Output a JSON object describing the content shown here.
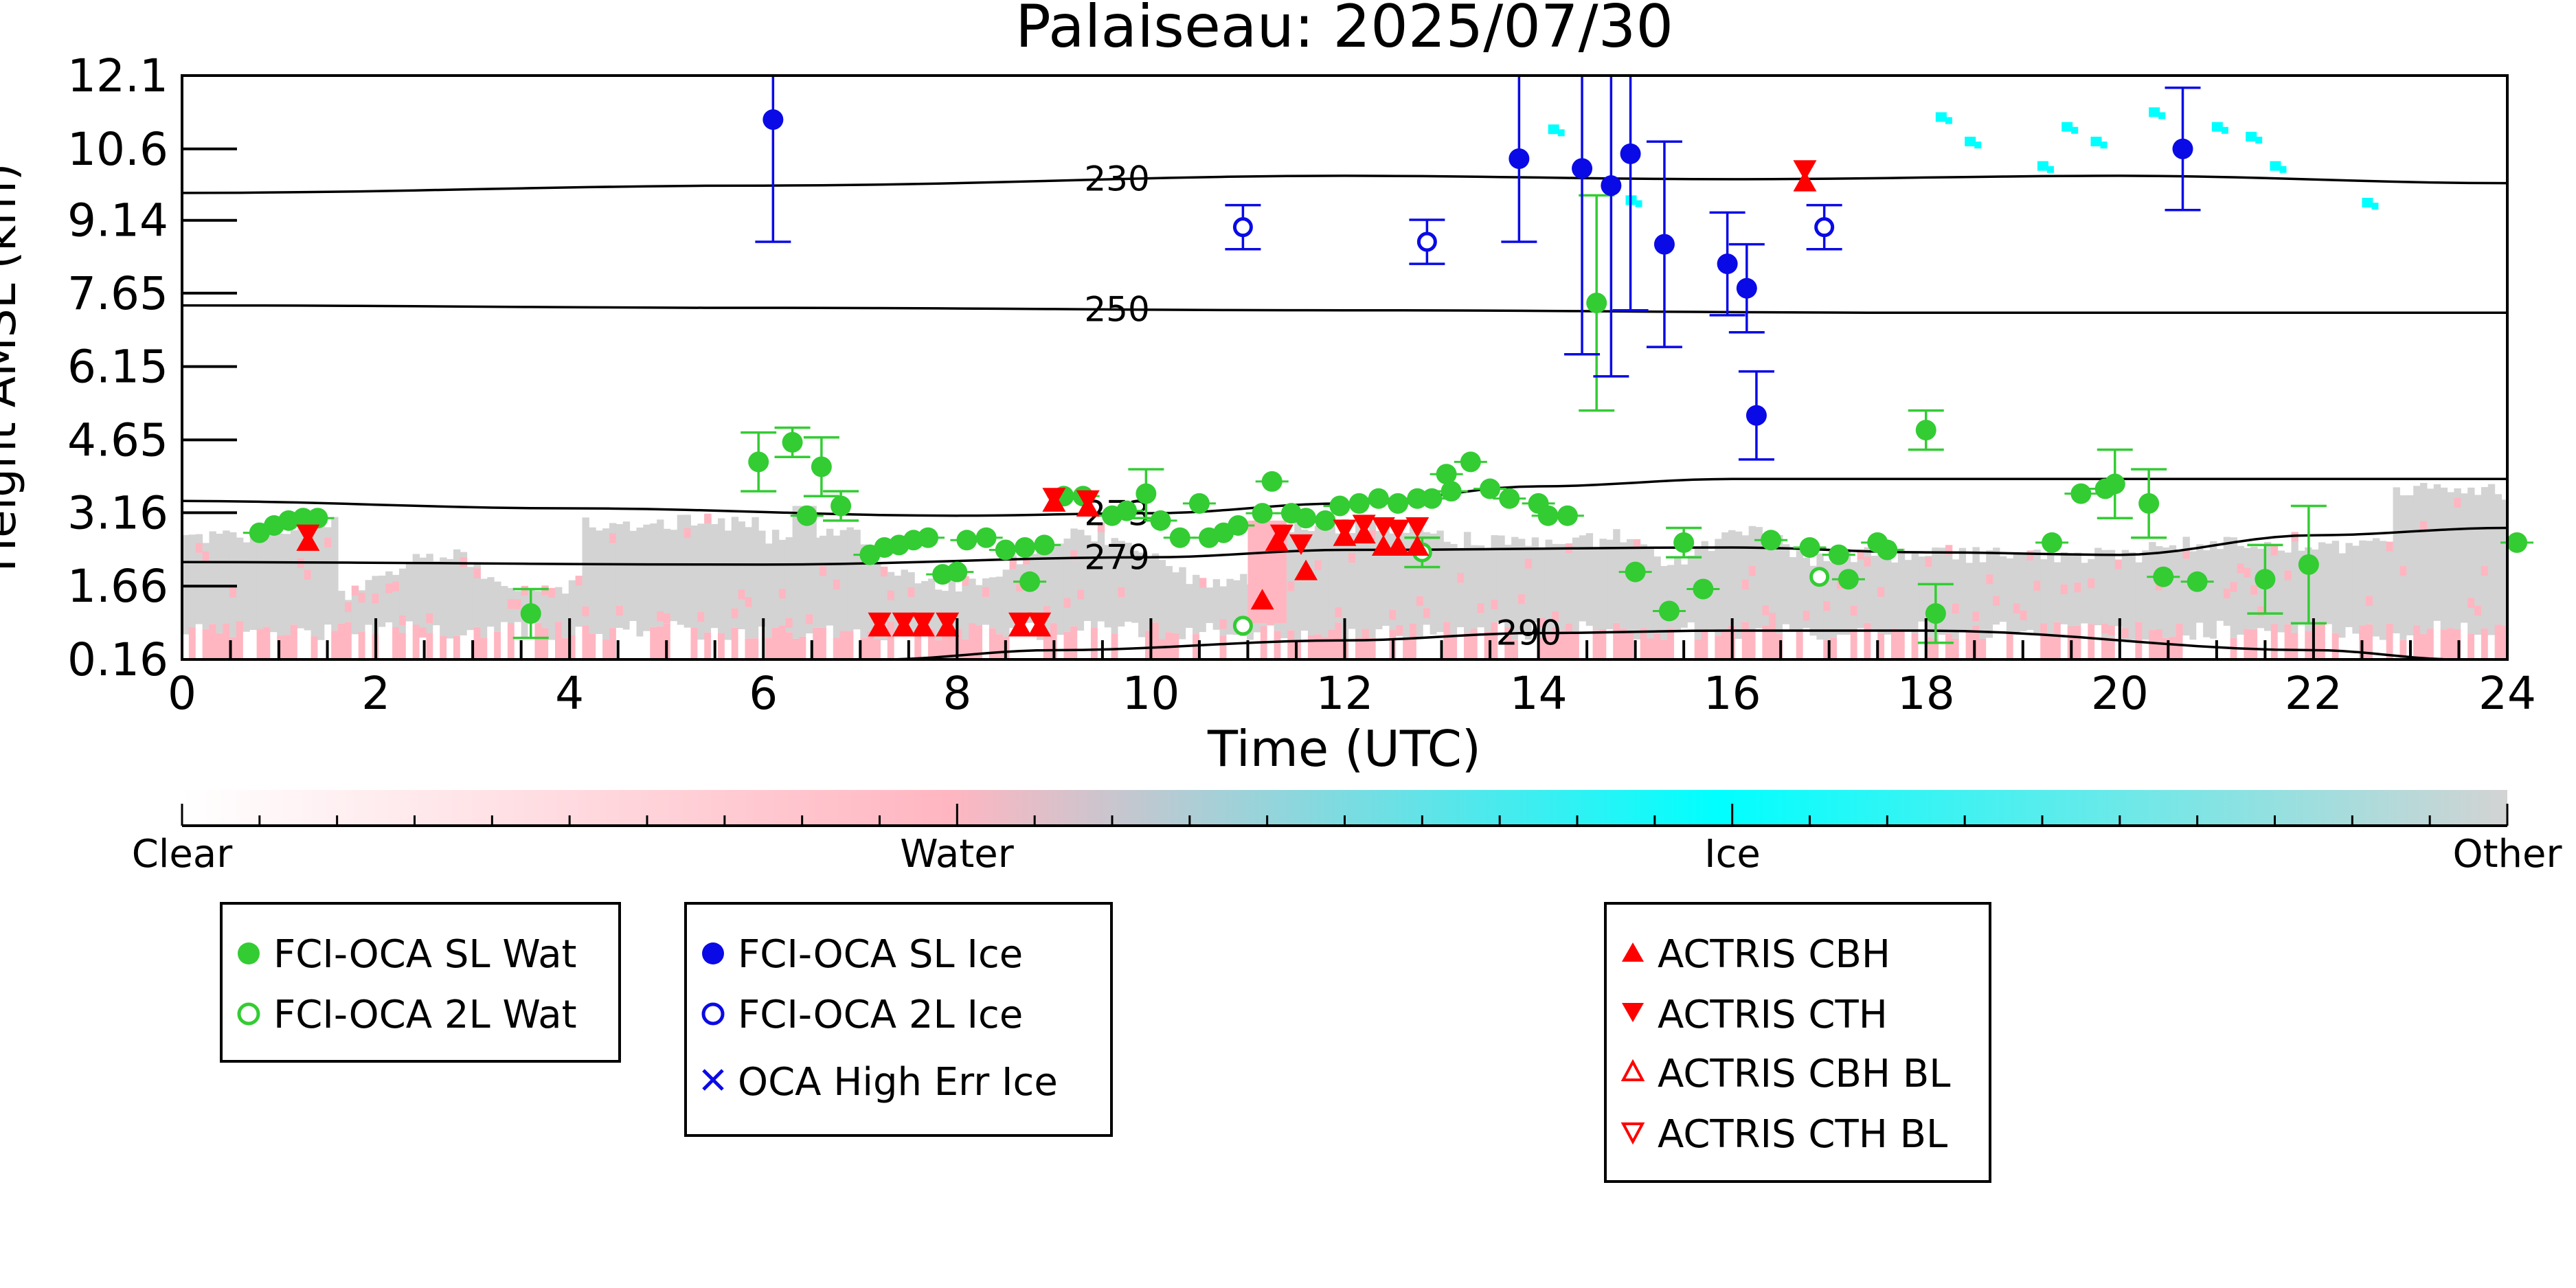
{
  "chart_data": {
    "type": "scatter",
    "title": "Palaiseau: 2025/07/30",
    "xlabel": "Time (UTC)",
    "ylabel": "Height AMSL (km)",
    "xlim": [
      0,
      24
    ],
    "ylim": [
      0.16,
      12.1
    ],
    "x_ticks": [
      "0",
      "2",
      "4",
      "6",
      "8",
      "10",
      "12",
      "14",
      "16",
      "18",
      "20",
      "22",
      "24"
    ],
    "y_ticks": [
      "0.16",
      "1.66",
      "3.16",
      "4.65",
      "6.15",
      "7.65",
      "9.14",
      "10.6",
      "12.1"
    ],
    "grid": false,
    "colorbar": {
      "labels": [
        "Clear",
        "Water",
        "Ice",
        "Other"
      ],
      "colors": [
        "#ffffff",
        "#ffb6c1",
        "#00ffff",
        "#d3d3d3"
      ]
    },
    "background_description": "cloud-phase curtain (grey = other, pink = water, cyan = ice)",
    "contours": [
      {
        "label": "230",
        "points": [
          [
            0,
            9.7
          ],
          [
            6,
            9.85
          ],
          [
            12,
            10.05
          ],
          [
            16,
            9.98
          ],
          [
            20,
            10.05
          ],
          [
            24,
            9.9
          ]
        ]
      },
      {
        "label": "250",
        "points": [
          [
            0,
            7.4
          ],
          [
            6,
            7.35
          ],
          [
            12,
            7.3
          ],
          [
            18,
            7.25
          ],
          [
            24,
            7.25
          ]
        ]
      },
      {
        "label": "273",
        "points": [
          [
            0,
            3.4
          ],
          [
            4,
            3.25
          ],
          [
            8,
            3.1
          ],
          [
            10,
            3.15
          ],
          [
            12,
            3.35
          ],
          [
            14,
            3.7
          ],
          [
            16,
            3.85
          ],
          [
            18,
            3.85
          ],
          [
            24,
            3.85
          ]
        ]
      },
      {
        "label": "279",
        "points": [
          [
            0,
            2.15
          ],
          [
            6,
            2.1
          ],
          [
            10,
            2.25
          ],
          [
            12,
            2.4
          ],
          [
            16,
            2.45
          ],
          [
            18,
            2.35
          ],
          [
            20,
            2.3
          ],
          [
            22,
            2.7
          ],
          [
            24,
            2.85
          ]
        ]
      },
      {
        "label": "290",
        "points": [
          [
            7.2,
            0.16
          ],
          [
            9,
            0.35
          ],
          [
            12,
            0.55
          ],
          [
            14,
            0.7
          ],
          [
            16,
            0.75
          ],
          [
            18,
            0.75
          ],
          [
            22,
            0.35
          ],
          [
            23.5,
            0.16
          ]
        ]
      }
    ],
    "series": [
      {
        "name": "FCI-OCA SL Wat",
        "color": "#33cc33",
        "marker": "filled-circle",
        "points": [
          {
            "x": 0.8,
            "y": 2.75
          },
          {
            "x": 0.95,
            "y": 2.9
          },
          {
            "x": 1.1,
            "y": 3.0
          },
          {
            "x": 1.25,
            "y": 3.05
          },
          {
            "x": 1.4,
            "y": 3.05
          },
          {
            "x": 3.6,
            "y": 1.1,
            "err": [
              0.5,
              0.5
            ]
          },
          {
            "x": 5.95,
            "y": 4.2,
            "err": [
              0.6,
              0.6
            ]
          },
          {
            "x": 6.3,
            "y": 4.6,
            "err": [
              0.3,
              0.3
            ]
          },
          {
            "x": 6.45,
            "y": 3.1
          },
          {
            "x": 6.6,
            "y": 4.1,
            "err": [
              0.6,
              0.6
            ]
          },
          {
            "x": 6.8,
            "y": 3.3,
            "err": [
              0.3,
              0.3
            ]
          },
          {
            "x": 7.1,
            "y": 2.3
          },
          {
            "x": 7.25,
            "y": 2.45
          },
          {
            "x": 7.4,
            "y": 2.5
          },
          {
            "x": 7.55,
            "y": 2.6
          },
          {
            "x": 7.7,
            "y": 2.65
          },
          {
            "x": 7.85,
            "y": 1.9
          },
          {
            "x": 8.0,
            "y": 1.95
          },
          {
            "x": 8.1,
            "y": 2.6
          },
          {
            "x": 8.3,
            "y": 2.65
          },
          {
            "x": 8.5,
            "y": 2.4
          },
          {
            "x": 8.7,
            "y": 2.45
          },
          {
            "x": 8.75,
            "y": 1.75
          },
          {
            "x": 8.9,
            "y": 2.5
          },
          {
            "x": 9.1,
            "y": 3.5
          },
          {
            "x": 9.3,
            "y": 3.5
          },
          {
            "x": 9.6,
            "y": 3.1
          },
          {
            "x": 9.75,
            "y": 3.2
          },
          {
            "x": 9.95,
            "y": 3.55,
            "err": [
              0.5,
              0.5
            ]
          },
          {
            "x": 10.1,
            "y": 3.0
          },
          {
            "x": 10.3,
            "y": 2.65
          },
          {
            "x": 10.5,
            "y": 3.35
          },
          {
            "x": 10.6,
            "y": 2.65
          },
          {
            "x": 10.75,
            "y": 2.75
          },
          {
            "x": 10.9,
            "y": 2.9
          },
          {
            "x": 11.15,
            "y": 3.15
          },
          {
            "x": 11.25,
            "y": 3.8
          },
          {
            "x": 11.45,
            "y": 3.15
          },
          {
            "x": 11.6,
            "y": 3.05
          },
          {
            "x": 11.8,
            "y": 3.0
          },
          {
            "x": 11.95,
            "y": 3.3
          },
          {
            "x": 12.15,
            "y": 3.35
          },
          {
            "x": 12.35,
            "y": 3.45
          },
          {
            "x": 12.55,
            "y": 3.35
          },
          {
            "x": 12.75,
            "y": 3.45
          },
          {
            "x": 12.9,
            "y": 3.45
          },
          {
            "x": 13.05,
            "y": 3.95
          },
          {
            "x": 13.1,
            "y": 3.6
          },
          {
            "x": 13.3,
            "y": 4.2
          },
          {
            "x": 13.5,
            "y": 3.65
          },
          {
            "x": 13.7,
            "y": 3.45
          },
          {
            "x": 14.0,
            "y": 3.35
          },
          {
            "x": 14.1,
            "y": 3.1
          },
          {
            "x": 14.3,
            "y": 3.1
          },
          {
            "x": 14.6,
            "y": 7.45,
            "err": [
              2.2,
              2.2
            ]
          },
          {
            "x": 15.0,
            "y": 1.95
          },
          {
            "x": 15.35,
            "y": 1.15
          },
          {
            "x": 15.5,
            "y": 2.55,
            "err": [
              0.3,
              0.3
            ]
          },
          {
            "x": 15.7,
            "y": 1.6
          },
          {
            "x": 16.4,
            "y": 2.6
          },
          {
            "x": 16.8,
            "y": 2.45
          },
          {
            "x": 17.1,
            "y": 2.3
          },
          {
            "x": 17.2,
            "y": 1.8
          },
          {
            "x": 17.5,
            "y": 2.55
          },
          {
            "x": 17.6,
            "y": 2.4
          },
          {
            "x": 18.0,
            "y": 4.85,
            "err": [
              0.4,
              0.4
            ]
          },
          {
            "x": 18.1,
            "y": 1.1,
            "err": [
              0.6,
              0.6
            ]
          },
          {
            "x": 19.3,
            "y": 2.55
          },
          {
            "x": 19.6,
            "y": 3.55
          },
          {
            "x": 19.85,
            "y": 3.65
          },
          {
            "x": 19.95,
            "y": 3.75,
            "err": [
              0.7,
              0.7
            ]
          },
          {
            "x": 20.3,
            "y": 3.35,
            "err": [
              0.7,
              0.7
            ]
          },
          {
            "x": 20.45,
            "y": 1.85
          },
          {
            "x": 20.8,
            "y": 1.75
          },
          {
            "x": 21.5,
            "y": 1.8,
            "err": [
              0.7,
              0.7
            ]
          },
          {
            "x": 21.95,
            "y": 2.1,
            "err": [
              1.2,
              1.2
            ]
          },
          {
            "x": 24.1,
            "y": 2.55
          }
        ]
      },
      {
        "name": "FCI-OCA 2L Wat",
        "color": "#33cc33",
        "marker": "open-circle",
        "points": [
          {
            "x": 10.95,
            "y": 0.85
          },
          {
            "x": 12.8,
            "y": 2.35,
            "err": [
              0.3,
              0.3
            ]
          },
          {
            "x": 16.9,
            "y": 1.85
          }
        ]
      },
      {
        "name": "FCI-OCA SL Ice",
        "color": "#0a0ae6",
        "marker": "filled-circle",
        "points": [
          {
            "x": 6.1,
            "y": 11.2,
            "err": [
              2.5,
              2.5
            ]
          },
          {
            "x": 13.8,
            "y": 10.4,
            "err": [
              1.7,
              1.7
            ]
          },
          {
            "x": 14.45,
            "y": 10.2,
            "err": [
              3.8,
              3.8
            ]
          },
          {
            "x": 14.75,
            "y": 9.85,
            "err": [
              3.9,
              3.9
            ]
          },
          {
            "x": 14.95,
            "y": 10.5,
            "err": [
              3.2,
              3.2
            ]
          },
          {
            "x": 15.3,
            "y": 8.65,
            "err": [
              2.1,
              2.1
            ]
          },
          {
            "x": 15.95,
            "y": 8.25,
            "err": [
              1.05,
              1.05
            ]
          },
          {
            "x": 16.15,
            "y": 7.75,
            "err": [
              0.9,
              0.9
            ]
          },
          {
            "x": 16.25,
            "y": 5.15,
            "err": [
              0.9,
              0.9
            ]
          },
          {
            "x": 20.65,
            "y": 10.6,
            "err": [
              1.25,
              1.25
            ]
          }
        ]
      },
      {
        "name": "FCI-OCA 2L Ice",
        "color": "#0a0ae6",
        "marker": "open-circle",
        "points": [
          {
            "x": 10.95,
            "y": 9.0,
            "err": [
              0.45,
              0.45
            ]
          },
          {
            "x": 12.85,
            "y": 8.7,
            "err": [
              0.45,
              0.45
            ]
          },
          {
            "x": 16.95,
            "y": 9.0,
            "err": [
              0.45,
              0.45
            ]
          }
        ]
      },
      {
        "name": "OCA High Err Ice",
        "color": "#0a0ae6",
        "marker": "x",
        "points": []
      },
      {
        "name": "ACTRIS CBH",
        "color": "#ff0000",
        "marker": "filled-triangle-up",
        "points": [
          {
            "x": 1.3,
            "y": 2.55
          },
          {
            "x": 7.2,
            "y": 0.8
          },
          {
            "x": 7.45,
            "y": 0.8
          },
          {
            "x": 7.65,
            "y": 0.8
          },
          {
            "x": 7.9,
            "y": 0.8
          },
          {
            "x": 8.65,
            "y": 0.8
          },
          {
            "x": 8.85,
            "y": 0.8
          },
          {
            "x": 9.0,
            "y": 3.35
          },
          {
            "x": 9.35,
            "y": 3.25
          },
          {
            "x": 11.15,
            "y": 1.35
          },
          {
            "x": 11.3,
            "y": 2.55
          },
          {
            "x": 11.6,
            "y": 1.95
          },
          {
            "x": 12.0,
            "y": 2.65
          },
          {
            "x": 12.2,
            "y": 2.7
          },
          {
            "x": 12.4,
            "y": 2.45
          },
          {
            "x": 12.55,
            "y": 2.45
          },
          {
            "x": 12.75,
            "y": 2.45
          },
          {
            "x": 16.75,
            "y": 9.9
          }
        ]
      },
      {
        "name": "ACTRIS CTH",
        "color": "#ff0000",
        "marker": "filled-triangle-down",
        "points": [
          {
            "x": 1.3,
            "y": 2.75
          },
          {
            "x": 7.2,
            "y": 0.95
          },
          {
            "x": 7.45,
            "y": 0.95
          },
          {
            "x": 7.65,
            "y": 0.95
          },
          {
            "x": 7.9,
            "y": 0.95
          },
          {
            "x": 8.65,
            "y": 0.95
          },
          {
            "x": 8.85,
            "y": 0.95
          },
          {
            "x": 9.0,
            "y": 3.5
          },
          {
            "x": 9.35,
            "y": 3.45
          },
          {
            "x": 11.35,
            "y": 2.75
          },
          {
            "x": 11.55,
            "y": 2.55
          },
          {
            "x": 12.0,
            "y": 2.85
          },
          {
            "x": 12.2,
            "y": 2.95
          },
          {
            "x": 12.4,
            "y": 2.9
          },
          {
            "x": 12.55,
            "y": 2.85
          },
          {
            "x": 12.75,
            "y": 2.9
          },
          {
            "x": 16.75,
            "y": 10.2
          }
        ]
      },
      {
        "name": "ACTRIS CBH BL",
        "color": "#ff0000",
        "marker": "open-triangle-up",
        "points": []
      },
      {
        "name": "ACTRIS CTH BL",
        "color": "#ff0000",
        "marker": "open-triangle-down",
        "points": []
      }
    ],
    "legends": [
      {
        "entries": [
          "FCI-OCA SL Wat",
          "FCI-OCA 2L Wat"
        ]
      },
      {
        "entries": [
          "FCI-OCA SL Ice",
          "FCI-OCA 2L Ice",
          "OCA High Err Ice"
        ]
      },
      {
        "entries": [
          "ACTRIS CBH",
          "ACTRIS CTH",
          "ACTRIS CBH BL",
          "ACTRIS CTH BL"
        ]
      }
    ]
  }
}
